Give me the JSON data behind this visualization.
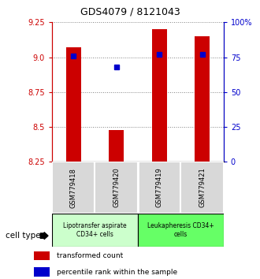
{
  "title": "GDS4079 / 8121043",
  "samples": [
    "GSM779418",
    "GSM779420",
    "GSM779419",
    "GSM779421"
  ],
  "bar_values": [
    9.07,
    8.48,
    9.2,
    9.15
  ],
  "percentile_values": [
    76,
    68,
    77,
    77
  ],
  "ylim_left": [
    8.25,
    9.25
  ],
  "ylim_right": [
    0,
    100
  ],
  "yticks_left": [
    8.25,
    8.5,
    8.75,
    9.0,
    9.25
  ],
  "yticks_right": [
    0,
    25,
    50,
    75,
    100
  ],
  "ytick_labels_right": [
    "0",
    "25",
    "50",
    "75",
    "100%"
  ],
  "bar_color": "#cc0000",
  "percentile_color": "#0000cc",
  "bar_bottom": 8.25,
  "cell_types": [
    {
      "label": "Lipotransfer aspirate\nCD34+ cells",
      "color": "#ccffcc",
      "span": [
        0,
        2
      ]
    },
    {
      "label": "Leukapheresis CD34+\ncells",
      "color": "#66ff66",
      "span": [
        2,
        4
      ]
    }
  ],
  "legend_bar_label": "transformed count",
  "legend_dot_label": "percentile rank within the sample",
  "cell_type_label": "cell type"
}
